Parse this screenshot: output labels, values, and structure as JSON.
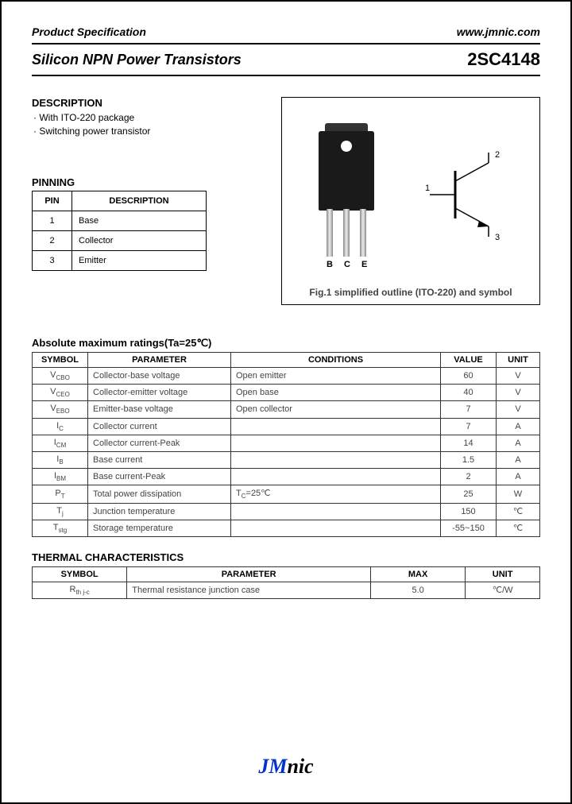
{
  "header": {
    "left": "Product Specification",
    "right": "www.jmnic.com"
  },
  "title": {
    "left": "Silicon NPN Power Transistors",
    "right": "2SC4148"
  },
  "description": {
    "heading": "DESCRIPTION",
    "items": [
      "With ITO-220 package",
      "Switching power transistor"
    ]
  },
  "pinning": {
    "heading": "PINNING",
    "cols": [
      "PIN",
      "DESCRIPTION"
    ],
    "rows": [
      {
        "pin": "1",
        "desc": "Base"
      },
      {
        "pin": "2",
        "desc": "Collector"
      },
      {
        "pin": "3",
        "desc": "Emitter"
      }
    ]
  },
  "figure": {
    "leadlabels": {
      "b": "B",
      "c": "C",
      "e": "E"
    },
    "symbolpins": {
      "p1": "1",
      "p2": "2",
      "p3": "3"
    },
    "caption": "Fig.1 simplified outline (ITO-220) and symbol"
  },
  "ratings": {
    "heading": "Absolute maximum ratings(Ta=25℃)",
    "cols": [
      "SYMBOL",
      "PARAMETER",
      "CONDITIONS",
      "VALUE",
      "UNIT"
    ],
    "rows": [
      {
        "s": "V_CBO",
        "p": "Collector-base voltage",
        "c": "Open emitter",
        "v": "60",
        "u": "V"
      },
      {
        "s": "V_CEO",
        "p": "Collector-emitter voltage",
        "c": "Open base",
        "v": "40",
        "u": "V"
      },
      {
        "s": "V_EBO",
        "p": "Emitter-base voltage",
        "c": "Open collector",
        "v": "7",
        "u": "V"
      },
      {
        "s": "I_C",
        "p": "Collector current",
        "c": "",
        "v": "7",
        "u": "A"
      },
      {
        "s": "I_CM",
        "p": "Collector current-Peak",
        "c": "",
        "v": "14",
        "u": "A"
      },
      {
        "s": "I_B",
        "p": "Base current",
        "c": "",
        "v": "1.5",
        "u": "A"
      },
      {
        "s": "I_BM",
        "p": "Base current-Peak",
        "c": "",
        "v": "2",
        "u": "A"
      },
      {
        "s": "P_T",
        "p": "Total power dissipation",
        "c": "T_C=25℃",
        "v": "25",
        "u": "W"
      },
      {
        "s": "T_j",
        "p": "Junction temperature",
        "c": "",
        "v": "150",
        "u": "℃"
      },
      {
        "s": "T_stg",
        "p": "Storage temperature",
        "c": "",
        "v": "-55~150",
        "u": "℃"
      }
    ]
  },
  "thermal": {
    "heading": "THERMAL CHARACTERISTICS",
    "cols": [
      "SYMBOL",
      "PARAMETER",
      "MAX",
      "UNIT"
    ],
    "rows": [
      {
        "s": "R_th j-c",
        "p": "Thermal resistance junction case",
        "v": "5.0",
        "u": "℃/W"
      }
    ]
  },
  "footer": {
    "jm": "JM",
    "nic": "nic"
  }
}
